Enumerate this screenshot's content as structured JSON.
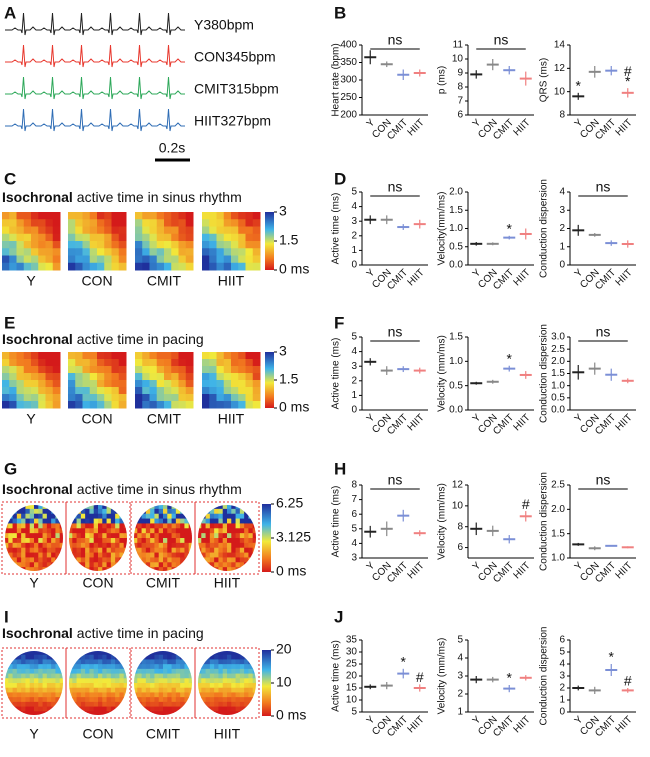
{
  "panel_labels": [
    "A",
    "B",
    "C",
    "D",
    "E",
    "F",
    "G",
    "H",
    "I",
    "J"
  ],
  "ecg": {
    "traces": [
      {
        "name": "Y380bpm",
        "color": "#222222"
      },
      {
        "name": "CON345bpm",
        "color": "#e8392f"
      },
      {
        "name": "CMIT315bpm",
        "color": "#2ea85a"
      },
      {
        "name": "HIIT327bpm",
        "color": "#2f6db5"
      }
    ],
    "scale_bar": "0.2s"
  },
  "maps": [
    {
      "title": [
        "Isochronal",
        "active time in sinus rhythm"
      ],
      "groups": [
        "Y",
        "CON",
        "CMIT",
        "HIIT"
      ],
      "colorbar": [
        3,
        1.5,
        {
          "value": 0,
          "label": "0 ms"
        }
      ],
      "shape": "square"
    },
    {
      "title": [
        "Isochronal",
        "active time in pacing"
      ],
      "groups": [
        "Y",
        "CON",
        "CMIT",
        "HIIT"
      ],
      "colorbar": [
        3,
        1.5,
        {
          "value": 0,
          "label": "0 ms"
        }
      ],
      "shape": "square"
    },
    {
      "title": [
        "Isochronal",
        "active time in sinus rhythm"
      ],
      "groups": [
        "Y",
        "CON",
        "CMIT",
        "HIIT"
      ],
      "colorbar": [
        6.25,
        3.125,
        {
          "value": 0,
          "label": "0 ms"
        }
      ],
      "shape": "oval"
    },
    {
      "title": [
        "Isochronal",
        "active time in pacing"
      ],
      "groups": [
        "Y",
        "CON",
        "CMIT",
        "HIIT"
      ],
      "colorbar": [
        20,
        10,
        {
          "value": 0,
          "label": "0 ms"
        }
      ],
      "shape": "oval"
    }
  ],
  "chart_data": [
    {
      "type": "dot",
      "ylabel": "Heart rate (bpm)",
      "categories": [
        "Y",
        "CON",
        "CMIT",
        "HIIT"
      ],
      "colors": [
        "#222222",
        "#888888",
        "#7b8fd6",
        "#f08080"
      ],
      "values": [
        365,
        345,
        315,
        320
      ],
      "errors": [
        20,
        8,
        15,
        10
      ],
      "ylim": [
        200,
        400
      ],
      "yticks": [
        200,
        250,
        300,
        350,
        400
      ],
      "annotations": [
        {
          "text": "ns"
        }
      ]
    },
    {
      "type": "dot",
      "ylabel": "p (ms)",
      "categories": [
        "Y",
        "CON",
        "CMIT",
        "HIIT"
      ],
      "colors": [
        "#222222",
        "#888888",
        "#7b8fd6",
        "#f08080"
      ],
      "values": [
        8.9,
        9.6,
        9.2,
        8.6
      ],
      "errors": [
        0.3,
        0.4,
        0.3,
        0.5
      ],
      "ylim": [
        6,
        11
      ],
      "yticks": [
        6,
        7,
        8,
        9,
        10,
        11
      ],
      "annotations": [
        {
          "text": "ns"
        }
      ]
    },
    {
      "type": "dot",
      "ylabel": "QRS (ms)",
      "categories": [
        "Y",
        "CON",
        "CMIT",
        "HIIT"
      ],
      "colors": [
        "#222222",
        "#888888",
        "#7b8fd6",
        "#f08080"
      ],
      "values": [
        9.6,
        11.7,
        11.8,
        9.9
      ],
      "errors": [
        0.3,
        0.5,
        0.4,
        0.4
      ],
      "ylim": [
        8,
        14
      ],
      "yticks": [
        8,
        10,
        12,
        14
      ],
      "annotations": [
        {
          "text": "*",
          "category": "Y"
        },
        {
          "text": "*",
          "category": "HIIT"
        },
        {
          "text": "#",
          "category": "HIIT"
        }
      ]
    },
    {
      "type": "dot",
      "ylabel": "Active time (ms)",
      "categories": [
        "Y",
        "CON",
        "CMIT",
        "HIIT"
      ],
      "colors": [
        "#222222",
        "#888888",
        "#7b8fd6",
        "#f08080"
      ],
      "values": [
        3.1,
        3.1,
        2.6,
        2.8
      ],
      "errors": [
        0.3,
        0.3,
        0.2,
        0.3
      ],
      "ylim": [
        0,
        5
      ],
      "yticks": [
        0,
        1,
        2,
        3,
        4,
        5
      ],
      "annotations": [
        {
          "text": "ns"
        }
      ]
    },
    {
      "type": "dot",
      "ylabel": "Velocity(mm/ms)",
      "categories": [
        "Y",
        "CON",
        "CMIT",
        "HIIT"
      ],
      "colors": [
        "#222222",
        "#888888",
        "#7b8fd6",
        "#f08080"
      ],
      "values": [
        0.58,
        0.58,
        0.75,
        0.85
      ],
      "errors": [
        0.05,
        0.04,
        0.05,
        0.15
      ],
      "ylim": [
        0,
        2
      ],
      "yticks": [
        {
          "value": 0,
          "label": "0.0"
        },
        0.5,
        {
          "value": 1,
          "label": "1.0"
        },
        1.5,
        {
          "value": 2,
          "label": "2.0"
        }
      ],
      "annotations": [
        {
          "text": "*",
          "category": "CMIT"
        }
      ]
    },
    {
      "type": "dot",
      "ylabel": "Conduction dispersion",
      "categories": [
        "Y",
        "CON",
        "CMIT",
        "HIIT"
      ],
      "colors": [
        "#222222",
        "#888888",
        "#7b8fd6",
        "#f08080"
      ],
      "values": [
        1.9,
        1.65,
        1.2,
        1.15
      ],
      "errors": [
        0.3,
        0.1,
        0.15,
        0.2
      ],
      "ylim": [
        0,
        4
      ],
      "yticks": [
        0,
        1,
        2,
        3,
        4
      ],
      "annotations": [
        {
          "text": "ns"
        }
      ]
    },
    {
      "type": "dot",
      "ylabel": "Active time (ms)",
      "categories": [
        "Y",
        "CON",
        "CMIT",
        "HIIT"
      ],
      "colors": [
        "#222222",
        "#888888",
        "#7b8fd6",
        "#f08080"
      ],
      "values": [
        3.3,
        2.7,
        2.8,
        2.7
      ],
      "errors": [
        0.25,
        0.3,
        0.2,
        0.2
      ],
      "ylim": [
        0,
        5
      ],
      "yticks": [
        0,
        1,
        2,
        3,
        4,
        5
      ],
      "annotations": [
        {
          "text": "ns"
        }
      ]
    },
    {
      "type": "dot",
      "ylabel": "Velocity (mm/ms)",
      "categories": [
        "Y",
        "CON",
        "CMIT",
        "HIIT"
      ],
      "colors": [
        "#222222",
        "#888888",
        "#7b8fd6",
        "#f08080"
      ],
      "values": [
        0.55,
        0.58,
        0.85,
        0.72
      ],
      "errors": [
        0.03,
        0.04,
        0.06,
        0.08
      ],
      "ylim": [
        0,
        1.5
      ],
      "yticks": [
        {
          "value": 0,
          "label": "0.0"
        },
        0.5,
        {
          "value": 1,
          "label": "1.0"
        },
        1.5
      ],
      "annotations": [
        {
          "text": "*",
          "category": "CMIT"
        }
      ]
    },
    {
      "type": "dot",
      "ylabel": "Conduction dispersion",
      "categories": [
        "Y",
        "CON",
        "CMIT",
        "HIIT"
      ],
      "colors": [
        "#222222",
        "#888888",
        "#7b8fd6",
        "#f08080"
      ],
      "values": [
        1.55,
        1.7,
        1.45,
        1.2
      ],
      "errors": [
        0.3,
        0.25,
        0.25,
        0.1
      ],
      "ylim": [
        0,
        3
      ],
      "yticks": [
        {
          "value": 0,
          "label": "0.0"
        },
        0.5,
        {
          "value": 1,
          "label": "1.0"
        },
        1.5,
        {
          "value": 2,
          "label": "2.0"
        },
        2.5,
        {
          "value": 3,
          "label": "3.0"
        }
      ],
      "annotations": [
        {
          "text": "ns"
        }
      ]
    },
    {
      "type": "dot",
      "ylabel": "Active time (ms)",
      "categories": [
        "Y",
        "CON",
        "CMIT",
        "HIIT"
      ],
      "colors": [
        "#222222",
        "#888888",
        "#7b8fd6",
        "#f08080"
      ],
      "values": [
        4.8,
        5.0,
        5.9,
        4.7
      ],
      "errors": [
        0.4,
        0.5,
        0.4,
        0.2
      ],
      "ylim": [
        3,
        8
      ],
      "yticks": [
        3,
        4,
        5,
        6,
        7,
        8
      ],
      "annotations": [
        {
          "text": "ns"
        }
      ]
    },
    {
      "type": "dot",
      "ylabel": "Velocity (mm/ms)",
      "categories": [
        "Y",
        "CON",
        "CMIT",
        "HIIT"
      ],
      "colors": [
        "#222222",
        "#888888",
        "#7b8fd6",
        "#f08080"
      ],
      "values": [
        7.8,
        7.6,
        6.8,
        9.0
      ],
      "errors": [
        0.6,
        0.5,
        0.4,
        0.5
      ],
      "ylim": [
        5,
        12
      ],
      "yticks": [
        6,
        8,
        10,
        12
      ],
      "annotations": [
        {
          "text": "#",
          "category": "HIIT"
        }
      ]
    },
    {
      "type": "dot",
      "ylabel": "Conduction dispersion",
      "categories": [
        "Y",
        "CON",
        "CMIT",
        "HIIT"
      ],
      "colors": [
        "#222222",
        "#888888",
        "#7b8fd6",
        "#f08080"
      ],
      "values": [
        1.28,
        1.2,
        1.25,
        1.22
      ],
      "errors": [
        0.03,
        0.04,
        0.01,
        0.02
      ],
      "ylim": [
        1,
        2.5
      ],
      "yticks": [
        {
          "value": 1,
          "label": "1.0"
        },
        1.5,
        {
          "value": 2,
          "label": "2.0"
        },
        2.5
      ],
      "annotations": [
        {
          "text": "ns"
        }
      ]
    },
    {
      "type": "dot",
      "ylabel": "Active time (ms)",
      "categories": [
        "Y",
        "CON",
        "CMIT",
        "HIIT"
      ],
      "colors": [
        "#222222",
        "#888888",
        "#7b8fd6",
        "#f08080"
      ],
      "values": [
        15.5,
        16,
        21,
        15
      ],
      "errors": [
        1,
        1.5,
        2,
        1.5
      ],
      "ylim": [
        5,
        35
      ],
      "yticks": [
        5,
        10,
        15,
        20,
        25,
        30,
        35
      ],
      "annotations": [
        {
          "text": "*",
          "category": "CMIT"
        },
        {
          "text": "#",
          "category": "HIIT"
        }
      ]
    },
    {
      "type": "dot",
      "ylabel": "Velocity (mm/ms)",
      "categories": [
        "Y",
        "CON",
        "CMIT",
        "HIIT"
      ],
      "colors": [
        "#222222",
        "#888888",
        "#7b8fd6",
        "#f08080"
      ],
      "values": [
        2.8,
        2.8,
        2.3,
        2.9
      ],
      "errors": [
        0.2,
        0.15,
        0.2,
        0.15
      ],
      "ylim": [
        1,
        5
      ],
      "yticks": [
        1,
        2,
        3,
        4,
        5
      ],
      "annotations": [
        {
          "text": "*",
          "category": "CMIT"
        }
      ]
    },
    {
      "type": "dot",
      "ylabel": "Conduction dispersion",
      "categories": [
        "Y",
        "CON",
        "CMIT",
        "HIIT"
      ],
      "colors": [
        "#222222",
        "#888888",
        "#7b8fd6",
        "#f08080"
      ],
      "values": [
        2.0,
        1.8,
        3.5,
        1.8
      ],
      "errors": [
        0.2,
        0.3,
        0.5,
        0.2
      ],
      "ylim": [
        0,
        6
      ],
      "yticks": [
        0,
        1,
        2,
        3,
        4,
        5,
        6
      ],
      "annotations": [
        {
          "text": "*",
          "category": "CMIT"
        },
        {
          "text": "#",
          "category": "HIIT"
        }
      ]
    }
  ]
}
